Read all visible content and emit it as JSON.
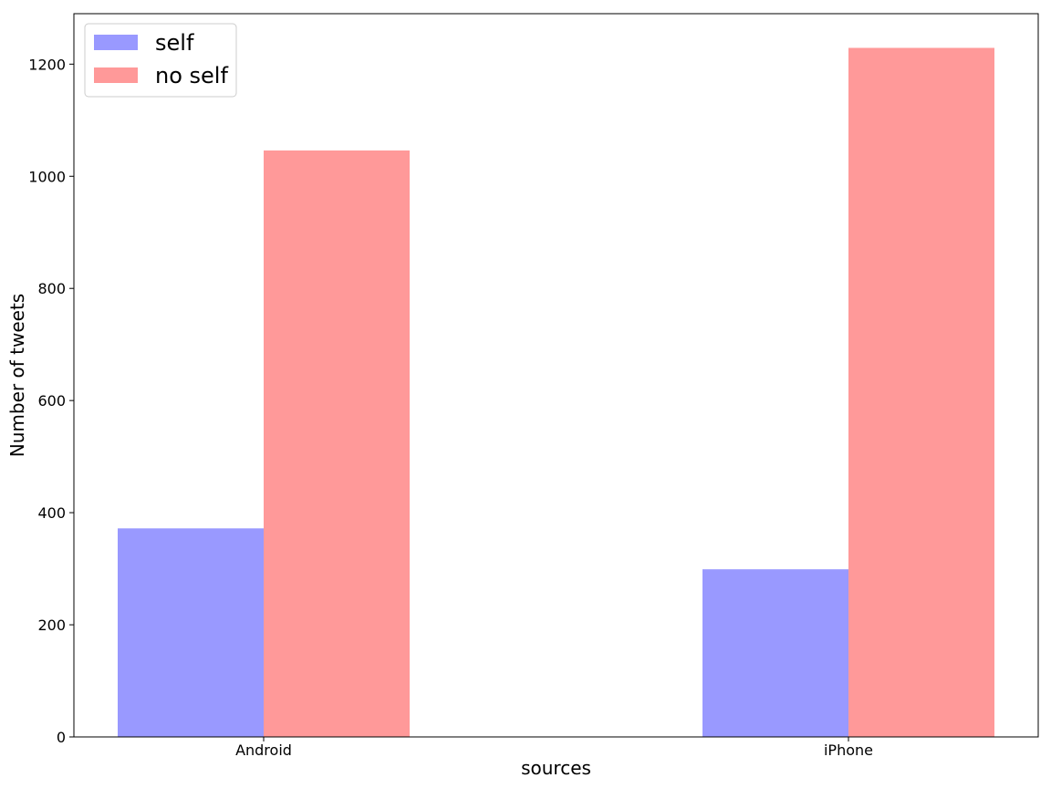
{
  "chart_data": {
    "type": "bar",
    "categories": [
      "Android",
      "iPhone"
    ],
    "series": [
      {
        "name": "self",
        "values": [
          372,
          299
        ],
        "color": "#9999ff"
      },
      {
        "name": "no self",
        "values": [
          1046,
          1229
        ],
        "color": "#ff9999"
      }
    ],
    "xlabel": "sources",
    "ylabel": "Number of tweets",
    "ylim": [
      0,
      1290
    ],
    "yticks": [
      0,
      200,
      400,
      600,
      800,
      1000,
      1200
    ],
    "grid": false,
    "legend_position": "top-left"
  }
}
